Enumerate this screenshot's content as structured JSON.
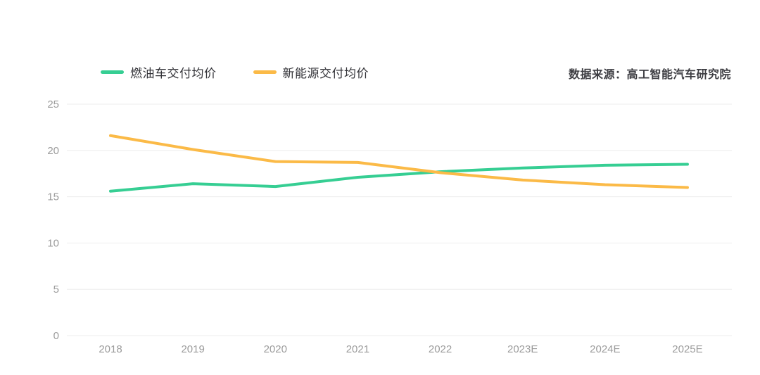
{
  "page": {
    "background": "#ffffff"
  },
  "legend": {
    "items": [
      {
        "label": "燃油车交付均价",
        "color": "#36ce93"
      },
      {
        "label": "新能源交付均价",
        "color": "#fbba47"
      }
    ]
  },
  "source_note": "数据来源：高工智能汽车研究院",
  "chart_data": {
    "type": "line",
    "title": "",
    "xlabel": "",
    "ylabel": "",
    "categories": [
      "2018",
      "2019",
      "2020",
      "2021",
      "2022",
      "2023E",
      "2024E",
      "2025E"
    ],
    "series": [
      {
        "name": "燃油车交付均价",
        "color": "#36ce93",
        "values": [
          15.6,
          16.4,
          16.1,
          17.1,
          17.7,
          18.1,
          18.4,
          18.5
        ]
      },
      {
        "name": "新能源交付均价",
        "color": "#fbba47",
        "values": [
          21.6,
          20.1,
          18.8,
          18.7,
          17.6,
          16.8,
          16.3,
          16.0
        ]
      }
    ],
    "ylim": [
      0,
      25
    ],
    "yticks": [
      0,
      5,
      10,
      15,
      20,
      25
    ],
    "grid": true,
    "gridline_color": "#ededed",
    "axis_label_color": "#9b9b9b",
    "legend_position": "top",
    "line_width": 4
  }
}
